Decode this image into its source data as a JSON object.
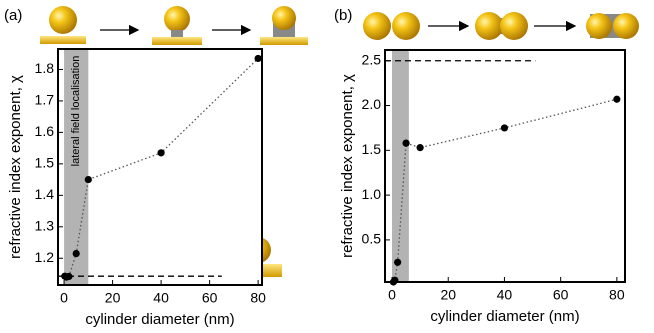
{
  "chart_data": [
    {
      "type": "line",
      "panel": "(a)",
      "x_label": "cylinder diameter (nm)",
      "y_label": "refractive index exponent, χ",
      "xlim": [
        -2.5,
        81.6
      ],
      "xticks": [
        0,
        20,
        40,
        60,
        80
      ],
      "ylim": [
        1.115,
        1.865
      ],
      "yticks": [
        1.2,
        1.3,
        1.4,
        1.5,
        1.6,
        1.7,
        1.8
      ],
      "shaded_region": {
        "x": [
          0,
          10
        ],
        "color": "#b3b3b3",
        "label": "lateral field localisation"
      },
      "reference_line": {
        "value": 1.143,
        "x_end": 65
      },
      "series": [
        {
          "color": "#000000",
          "x": [
            0.3,
            1,
            2,
            5,
            10,
            40,
            80
          ],
          "values": [
            1.143,
            1.14,
            1.142,
            1.215,
            1.45,
            1.535,
            1.835
          ]
        }
      ]
    },
    {
      "type": "line",
      "panel": "(b)",
      "x_label": "cylinder diameter (nm)",
      "y_label": "refractive index exponent, χ",
      "xlim": [
        -2.5,
        82.9
      ],
      "xticks": [
        0,
        20,
        40,
        60,
        80
      ],
      "ylim": [
        0.03,
        2.62
      ],
      "yticks": [
        0.5,
        {
          "value": 1,
          "label": "1.0"
        },
        1.5,
        {
          "value": 2,
          "label": "2.0"
        },
        2.5
      ],
      "shaded_region": {
        "x": [
          0,
          6
        ],
        "color": "#b3b3b3"
      },
      "reference_line": {
        "value": 2.5,
        "x_end": 51
      },
      "series": [
        {
          "color": "#000000",
          "x": [
            0.5,
            1,
            2,
            5,
            10,
            40,
            80
          ],
          "values": [
            0.03,
            0.05,
            0.25,
            1.58,
            1.53,
            1.75,
            2.07
          ]
        }
      ]
    }
  ]
}
